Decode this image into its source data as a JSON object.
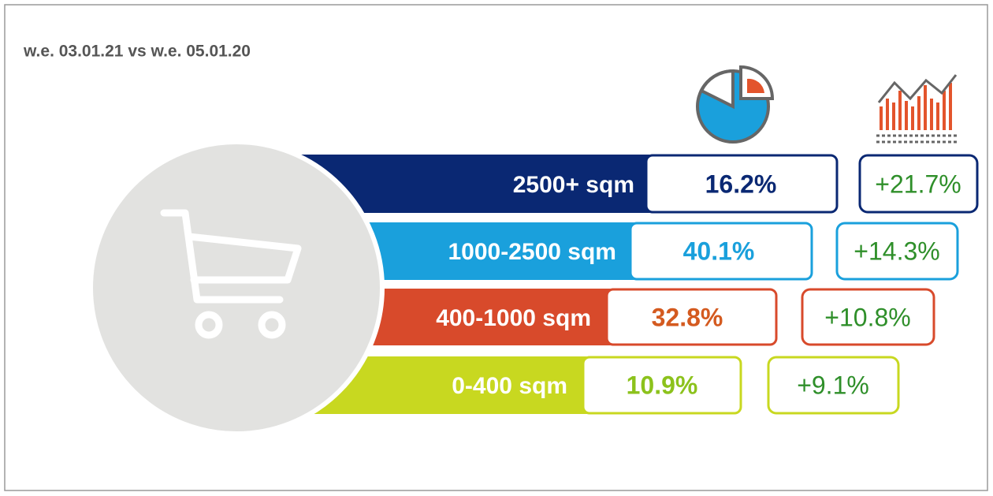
{
  "header": {
    "title": "w.e. 03.01.21 vs w.e. 05.01.20"
  },
  "rows": [
    {
      "label": "2500+ sqm",
      "share": "16.2%",
      "growth": "+21.7%"
    },
    {
      "label": "1000-2500 sqm",
      "share": "40.1%",
      "growth": "+14.3%"
    },
    {
      "label": "400-1000 sqm",
      "share": "32.8%",
      "growth": "+10.8%"
    },
    {
      "label": "0-400 sqm",
      "share": "10.9%",
      "growth": "+9.1%"
    }
  ]
}
